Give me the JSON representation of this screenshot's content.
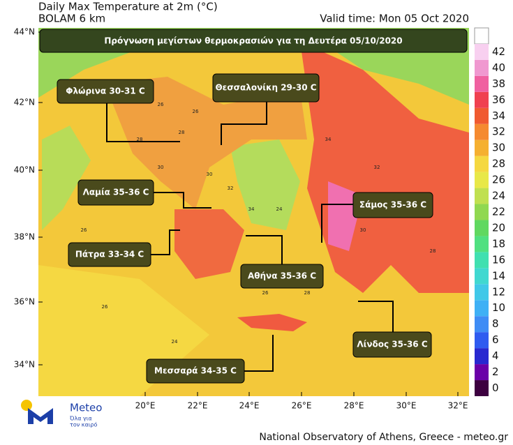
{
  "header": {
    "title": "Daily Max Temperature at 2m (°C)",
    "model": "BOLAM 6 km",
    "valid_time": "Valid time: Mon 05 Oct 2020"
  },
  "banner": "Πρόγνωση μεγίστων θερμοκρασιών για τη Δευτέρα 05/10/2020",
  "callouts": [
    "Φλώρινα 30-31 C",
    "Θεσσαλονίκη 29-30 C",
    "Λαμία 35-36 C",
    "Πάτρα 33-34 C",
    "Αθήνα 35-36 C",
    "Σάμος 35-36 C",
    "Λίνδος 35-36 C",
    "Μεσσαρά  34-35 C"
  ],
  "lat_labels": [
    "44°N",
    "42°N",
    "40°N",
    "38°N",
    "36°N",
    "34°N"
  ],
  "lon_labels": [
    "20°E",
    "22°E",
    "24°E",
    "26°E",
    "28°E",
    "30°E",
    "32°E"
  ],
  "colorbar": {
    "ticks": [
      0,
      2,
      4,
      6,
      8,
      10,
      12,
      14,
      16,
      18,
      20,
      22,
      24,
      26,
      28,
      30,
      32,
      34,
      36,
      38,
      40,
      42
    ],
    "colors": [
      "#3d0040",
      "#6a00a8",
      "#2828d0",
      "#2f5bf0",
      "#3f8cf5",
      "#3fb0f5",
      "#40c8e8",
      "#40d8d0",
      "#40e0b0",
      "#50e080",
      "#60d860",
      "#90d850",
      "#c0e050",
      "#e8e848",
      "#f5d840",
      "#f5b030",
      "#f58a30",
      "#f05a30",
      "#f04050",
      "#f060a0",
      "#f098d0",
      "#f8d0f0"
    ]
  },
  "point_labels": [
    26,
    28,
    30,
    32,
    34,
    24,
    26,
    28,
    30,
    26,
    34,
    32,
    30,
    28,
    26,
    28,
    30,
    26,
    24,
    26
  ],
  "logo": {
    "name": "Meteo",
    "tagline_1": "Όλα για",
    "tagline_2": "τον καιρό"
  },
  "footer": "National Observatory of Athens, Greece - meteo.gr"
}
